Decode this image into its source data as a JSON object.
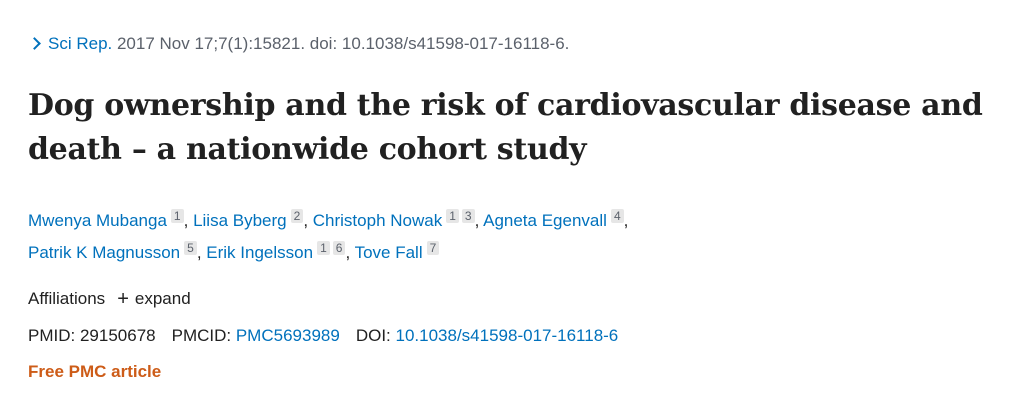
{
  "citation": {
    "journal": "Sci Rep.",
    "details": " 2017 Nov 17;7(1):15821. doi: 10.1038/s41598-017-16118-6."
  },
  "title": "Dog ownership and the risk of cardiovascular disease and death – a nationwide cohort study",
  "authors": [
    {
      "name": "Mwenya Mubanga",
      "affiliations": [
        "1"
      ]
    },
    {
      "name": "Liisa Byberg",
      "affiliations": [
        "2"
      ]
    },
    {
      "name": "Christoph Nowak",
      "affiliations": [
        "1",
        "3"
      ]
    },
    {
      "name": "Agneta Egenvall",
      "affiliations": [
        "4"
      ]
    },
    {
      "name": "Patrik K Magnusson",
      "affiliations": [
        "5"
      ]
    },
    {
      "name": "Erik Ingelsson",
      "affiliations": [
        "1",
        "6"
      ]
    },
    {
      "name": "Tove Fall",
      "affiliations": [
        "7"
      ]
    }
  ],
  "affiliations": {
    "label": "Affiliations",
    "expand_label": "expand"
  },
  "identifiers": {
    "pmid_label": "PMID:",
    "pmid_value": "29150678",
    "pmcid_label": "PMCID:",
    "pmcid_value": "PMC5693989",
    "doi_label": "DOI:",
    "doi_value": "10.1038/s41598-017-16118-6"
  },
  "free_article": "Free PMC article",
  "colors": {
    "link": "#0071bc",
    "free_article": "#cd5c18",
    "badge_bg": "#e6e6e6"
  }
}
